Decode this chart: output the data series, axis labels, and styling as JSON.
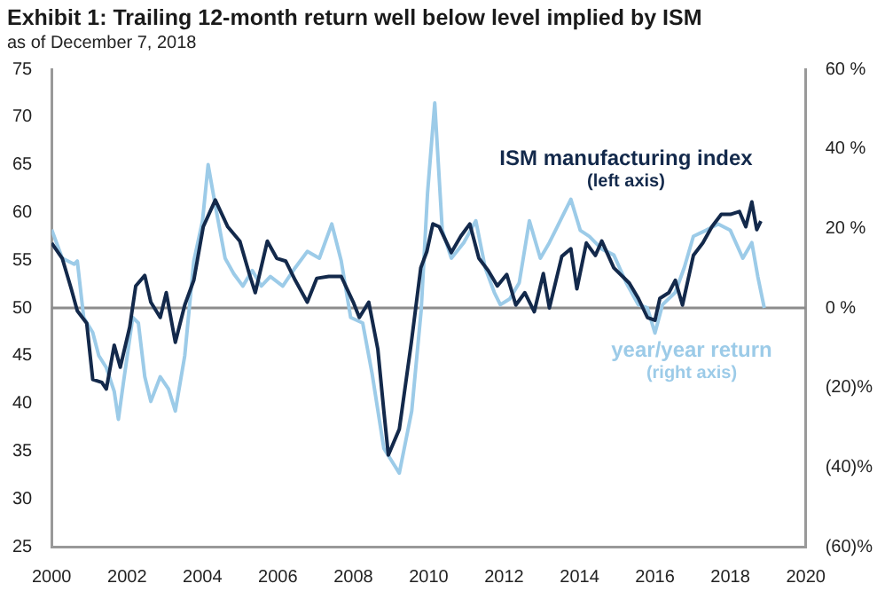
{
  "chart_data": {
    "type": "line",
    "title": "Exhibit 1: Trailing 12-month return well below level implied by ISM",
    "subtitle": "as of December 7, 2018",
    "annotations": [
      "(left axis)",
      "(right axis)"
    ],
    "xlim": [
      2000,
      2020
    ],
    "xticks": [
      2000,
      2002,
      2004,
      2006,
      2008,
      2010,
      2012,
      2014,
      2016,
      2018,
      2020
    ],
    "ylim": [
      25,
      75
    ],
    "yticks": [
      25,
      30,
      35,
      40,
      45,
      50,
      55,
      60,
      65,
      70,
      75
    ],
    "y2lim": [
      -60,
      60
    ],
    "y2ticks": [
      {
        "value": -60,
        "label": "(60)%"
      },
      {
        "value": -40,
        "label": "(40)%"
      },
      {
        "value": -20,
        "label": "(20)%"
      },
      {
        "value": 0,
        "label": "0 %"
      },
      {
        "value": 20,
        "label": "20 %"
      },
      {
        "value": 40,
        "label": "40 %"
      },
      {
        "value": 60,
        "label": "60 %"
      }
    ],
    "ref_lines": [
      {
        "axis": "y",
        "value": 50,
        "color": "#8c8c8c"
      }
    ],
    "grid": false,
    "legend": false,
    "marker": "none",
    "line_style": "solid",
    "series": [
      {
        "name": "ISM manufacturing index",
        "color": "#13294b",
        "x": [
          2000.0,
          2000.28,
          2000.52,
          2000.68,
          2000.93,
          2001.09,
          2001.33,
          2001.45,
          2001.66,
          2001.82,
          2002.07,
          2002.23,
          2002.47,
          2002.63,
          2002.88,
          2003.04,
          2003.28,
          2003.53,
          2003.77,
          2004.02,
          2004.34,
          2004.67,
          2004.99,
          2005.24,
          2005.4,
          2005.72,
          2005.97,
          2006.21,
          2006.46,
          2006.78,
          2007.03,
          2007.35,
          2007.68,
          2008.0,
          2008.16,
          2008.41,
          2008.65,
          2008.81,
          2008.93,
          2009.22,
          2009.54,
          2009.79,
          2009.95,
          2010.11,
          2010.28,
          2010.6,
          2010.85,
          2011.09,
          2011.33,
          2011.58,
          2011.82,
          2012.07,
          2012.31,
          2012.55,
          2012.8,
          2013.04,
          2013.2,
          2013.53,
          2013.77,
          2013.93,
          2014.18,
          2014.42,
          2014.59,
          2014.91,
          2015.32,
          2015.56,
          2015.8,
          2016.0,
          2016.13,
          2016.37,
          2016.54,
          2016.73,
          2017.02,
          2017.27,
          2017.51,
          2017.76,
          2018.0,
          2018.24,
          2018.41,
          2018.57,
          2018.7,
          2018.81
        ],
        "values": [
          56.8,
          55.2,
          52,
          49.7,
          48.4,
          42.5,
          42.2,
          41.5,
          46.1,
          43.8,
          48,
          52.3,
          53.4,
          50.6,
          49,
          51.6,
          46.4,
          50.3,
          52.9,
          58.5,
          61.3,
          58.5,
          57,
          53.6,
          51.6,
          57,
          55.2,
          54.9,
          52.9,
          50.6,
          53.1,
          53.3,
          53.3,
          50.6,
          49,
          50.6,
          45.7,
          39.2,
          34.6,
          37.3,
          46.4,
          54.2,
          55.9,
          58.8,
          58.5,
          55.8,
          57.5,
          58.8,
          55.2,
          53.9,
          52.3,
          53.5,
          50.3,
          51.6,
          49.6,
          53.6,
          50,
          55.4,
          56.2,
          52,
          56.8,
          55.5,
          57,
          54.2,
          52.6,
          51,
          49,
          48.7,
          51,
          51.6,
          52.9,
          50.3,
          55.5,
          56.8,
          58.5,
          59.8,
          59.8,
          60.1,
          58.5,
          61.1,
          58.2,
          59.1
        ]
      },
      {
        "name": "year/year return",
        "axis": "y2",
        "color": "#9ccbe8",
        "x": [
          2000.0,
          2000.28,
          2000.6,
          2000.68,
          2000.85,
          2001.09,
          2001.25,
          2001.45,
          2001.66,
          2001.77,
          2001.9,
          2002.15,
          2002.3,
          2002.47,
          2002.63,
          2002.88,
          2003.1,
          2003.28,
          2003.53,
          2003.77,
          2004.0,
          2004.15,
          2004.34,
          2004.6,
          2004.83,
          2005.07,
          2005.32,
          2005.56,
          2005.8,
          2006.13,
          2006.46,
          2006.78,
          2007.1,
          2007.43,
          2007.68,
          2007.93,
          2008.25,
          2008.5,
          2008.81,
          2009.06,
          2009.22,
          2009.55,
          2009.8,
          2009.97,
          2010.16,
          2010.36,
          2010.6,
          2010.93,
          2011.25,
          2011.5,
          2011.74,
          2011.9,
          2012.15,
          2012.4,
          2012.67,
          2012.96,
          2013.2,
          2013.53,
          2013.77,
          2014.02,
          2014.26,
          2014.59,
          2014.91,
          2015.24,
          2015.56,
          2015.8,
          2016.0,
          2016.2,
          2016.54,
          2016.78,
          2017.02,
          2017.35,
          2017.68,
          2018.0,
          2018.33,
          2018.57,
          2018.73,
          2018.9
        ],
        "values": [
          19.7,
          12.5,
          11,
          11.8,
          -2.4,
          -6.2,
          -12,
          -15,
          -21,
          -28,
          -19,
          -2.4,
          -3.8,
          -17.3,
          -23.5,
          -17.3,
          -20.4,
          -25.9,
          -12,
          11.8,
          21.8,
          36,
          25.8,
          12.5,
          8.6,
          5.5,
          9.4,
          5.5,
          7.9,
          5.5,
          10.1,
          14.2,
          12.5,
          21.1,
          11.8,
          -2.4,
          -3.8,
          -16.6,
          -35.3,
          -39.1,
          -41.5,
          -25.9,
          -0.6,
          29,
          51.5,
          19.5,
          12.5,
          16.4,
          21.9,
          10,
          3.9,
          0.8,
          2.3,
          6.3,
          21.9,
          12.5,
          16.4,
          22.7,
          27.3,
          19.5,
          18,
          14.8,
          13.3,
          6.3,
          0.8,
          0,
          -6.3,
          0.8,
          3.9,
          10.2,
          18,
          19.5,
          21.1,
          19.5,
          12.5,
          16.4,
          7.8,
          0
        ]
      }
    ]
  }
}
